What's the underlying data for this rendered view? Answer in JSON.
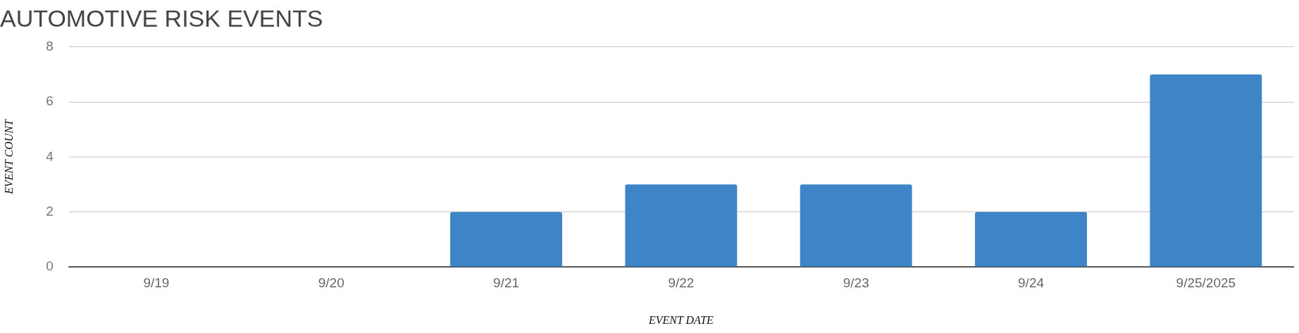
{
  "chart_data": {
    "type": "bar",
    "title": "AUTOMOTIVE RISK EVENTS",
    "xlabel": "EVENT DATE",
    "ylabel": "EVENT COUNT",
    "categories": [
      "9/19",
      "9/20",
      "9/21",
      "9/22",
      "9/23",
      "9/24",
      "9/25/2025"
    ],
    "values": [
      0,
      0,
      2,
      3,
      3,
      2,
      7
    ],
    "color": "#3d85c6",
    "ylim": [
      0,
      8
    ],
    "yticks": [
      0,
      2,
      4,
      6,
      8
    ],
    "grid": "y",
    "legend": false
  }
}
